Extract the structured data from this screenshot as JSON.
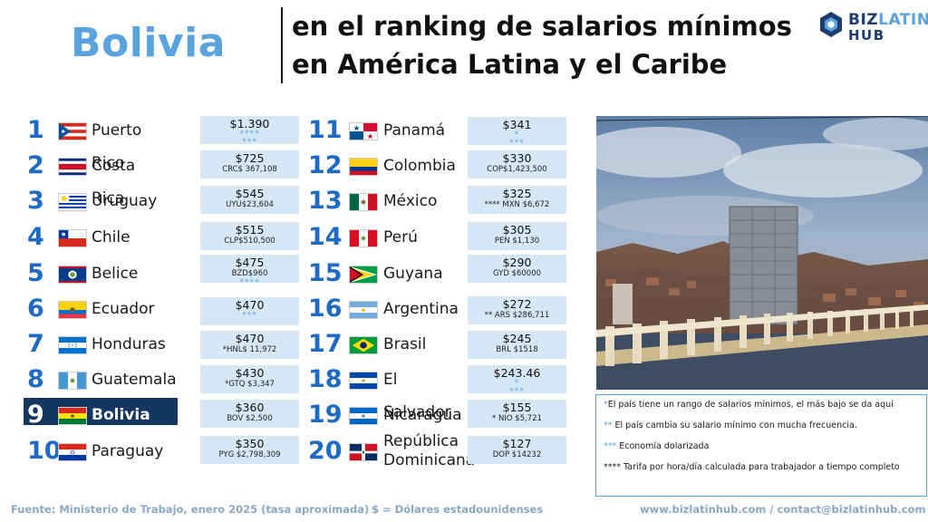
{
  "header": {
    "country": "Bolivia",
    "title_line1": "en el ranking de salarios mínimos",
    "title_line2": "en América Latina y el Caribe",
    "logo_line1_a": "BIZ",
    "logo_line1_b": "LATIN",
    "logo_line2": "HUB"
  },
  "rankings": [
    {
      "rank": "1",
      "country": "Puerto Rico",
      "usd": "$1.390",
      "local": "",
      "marks": "****\n***"
    },
    {
      "rank": "2",
      "country": "Costa Rica",
      "usd": "$725",
      "local": "CRC$ 367,108",
      "marks": ""
    },
    {
      "rank": "3",
      "country": "Uruguay",
      "usd": "$545",
      "local": "UYU$23,604",
      "marks": ""
    },
    {
      "rank": "4",
      "country": "Chile",
      "usd": "$515",
      "local": "CLP$510,500",
      "marks": ""
    },
    {
      "rank": "5",
      "country": "Belice",
      "usd": "$475",
      "local": "BZD$960",
      "marks": "****"
    },
    {
      "rank": "6",
      "country": "Ecuador",
      "usd": "$470",
      "local": "",
      "marks": "***"
    },
    {
      "rank": "7",
      "country": "Honduras",
      "usd": "$470",
      "local": "*HNL$ 11,972",
      "marks": ""
    },
    {
      "rank": "8",
      "country": "Guatemala",
      "usd": "$430",
      "local": "*GTQ $3,347",
      "marks": ""
    },
    {
      "rank": "9",
      "country": "Bolivia",
      "usd": "$360",
      "local": "BOV $2,500",
      "marks": ""
    },
    {
      "rank": "10",
      "country": "Paraguay",
      "usd": "$350",
      "local": "PYG $2,798,309",
      "marks": ""
    },
    {
      "rank": "11",
      "country": "Panamá",
      "usd": "$341",
      "local": "",
      "marks": "*\n***"
    },
    {
      "rank": "12",
      "country": "Colombia",
      "usd": "$330",
      "local": "COP$1,423,500",
      "marks": ""
    },
    {
      "rank": "13",
      "country": "México",
      "usd": "$325",
      "local": "**** MXN $6,672",
      "marks": ""
    },
    {
      "rank": "14",
      "country": "Perú",
      "usd": "$305",
      "local": "PEN $1,130",
      "marks": ""
    },
    {
      "rank": "15",
      "country": "Guyana",
      "usd": "$290",
      "local": "GYD $60000",
      "marks": ""
    },
    {
      "rank": "16",
      "country": "Argentina",
      "usd": "$272",
      "local": "** ARS $286,711",
      "marks": ""
    },
    {
      "rank": "17",
      "country": "Brasil",
      "usd": "$245",
      "local": "BRL $1518",
      "marks": ""
    },
    {
      "rank": "18",
      "country": "El Salvador",
      "usd": "$243.46",
      "local": "",
      "marks": "*\n***"
    },
    {
      "rank": "19",
      "country": "Nicaragua",
      "usd": "$155",
      "local": "* NIO $5,721",
      "marks": ""
    },
    {
      "rank": "20",
      "country": "República Dominicana",
      "usd": "$127",
      "local": "DOP $14232",
      "marks": ""
    }
  ],
  "notes": [
    {
      "stars": "*",
      "text": "El país tiene un rango de salarios mínimos, el más bajo se da aquí"
    },
    {
      "stars": "**",
      "text": " El país cambia su salario mínimo con mucha frecuencia."
    },
    {
      "stars": "***",
      "text": " Economía dolarizada"
    },
    {
      "stars": "****",
      "text": " Tarifa por hora/día calculada para trabajador a tiempo completo"
    }
  ],
  "footer": {
    "source": "Fuente: Ministerio de Trabajo, enero 2025 (tasa aproximada)",
    "currency": "$ = Dólares estadounidenses",
    "contact": "www.bizlatinhub.com / contact@bizlatinhub.com"
  },
  "colors": {
    "accent": "#5aa3de",
    "rank": "#1f6bc4",
    "highlight": "#14365f",
    "salary_bg": "#d6e7f5"
  }
}
